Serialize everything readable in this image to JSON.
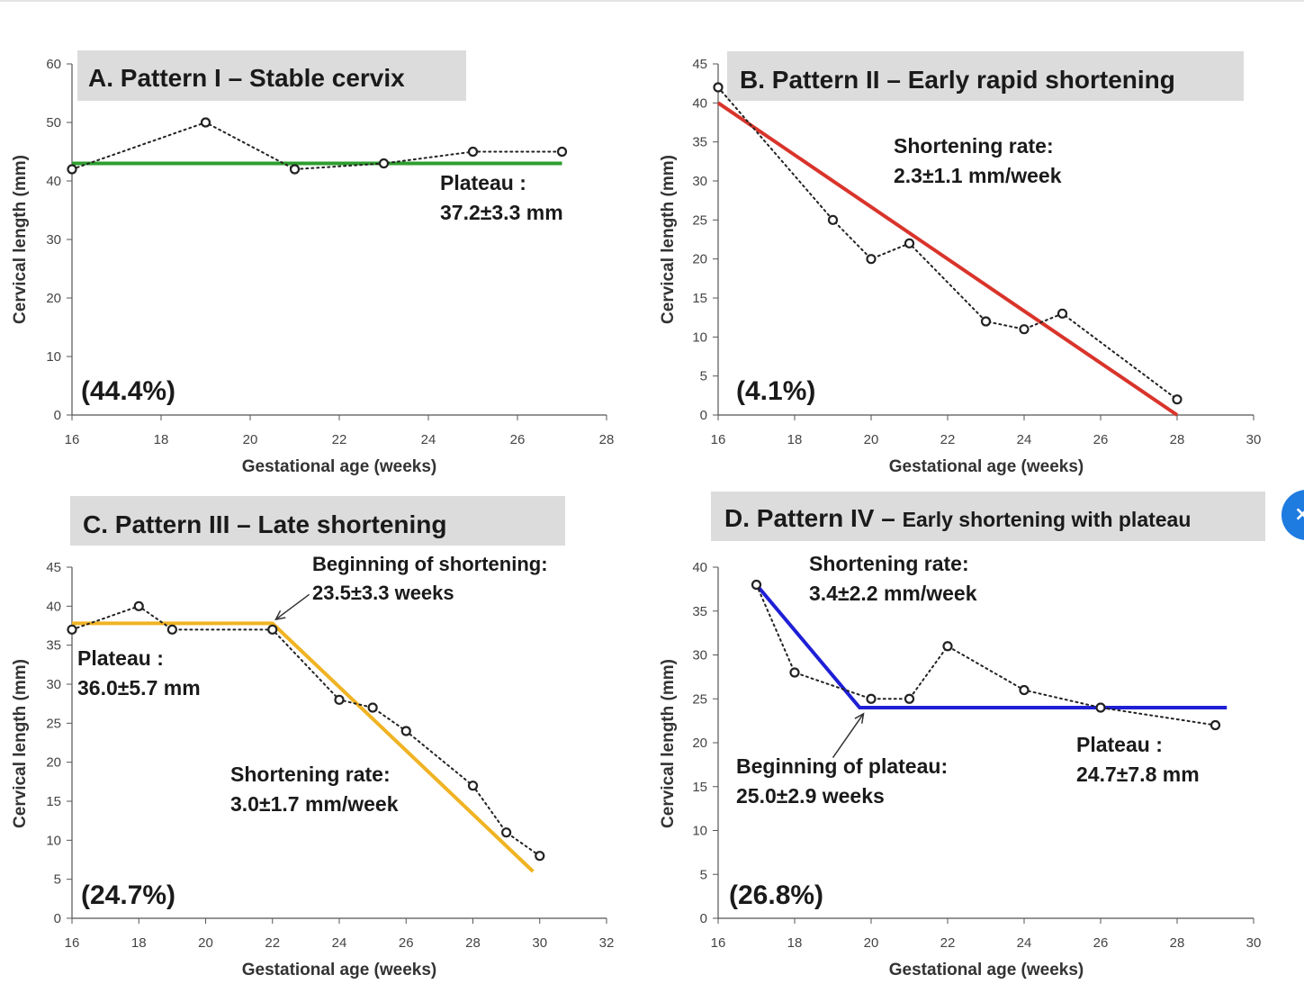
{
  "chart_data": [
    {
      "type": "line",
      "title": "A.  Pattern I – Stable cervix",
      "xlabel": "Gestational age (weeks)",
      "ylabel": "Cervical length (mm)",
      "xlim": [
        16,
        28
      ],
      "ylim": [
        0,
        60
      ],
      "xticks": [
        16,
        18,
        20,
        22,
        24,
        26,
        28
      ],
      "yticks": [
        0,
        10,
        20,
        30,
        40,
        50,
        60
      ],
      "series": [
        {
          "kind": "observed",
          "x": [
            16,
            19,
            21,
            23,
            25,
            27
          ],
          "y": [
            42,
            50,
            42,
            43,
            45,
            45
          ]
        },
        {
          "kind": "fit",
          "color": "#2e9e2e",
          "x": [
            16,
            27
          ],
          "y": [
            43,
            43
          ]
        }
      ],
      "annotations": [
        {
          "lines": [
            "Plateau :",
            "37.2±3.3 mm"
          ]
        }
      ],
      "percentage": "(44.4%)"
    },
    {
      "type": "line",
      "title": "B.  Pattern II – Early rapid shortening",
      "xlabel": "Gestational age (weeks)",
      "ylabel": "Cervical length (mm)",
      "xlim": [
        16,
        30
      ],
      "ylim": [
        0,
        45
      ],
      "xticks": [
        16,
        18,
        20,
        22,
        24,
        26,
        28,
        30
      ],
      "yticks": [
        0,
        5,
        10,
        15,
        20,
        25,
        30,
        35,
        40,
        45
      ],
      "series": [
        {
          "kind": "observed",
          "x": [
            16,
            19,
            20,
            21,
            23,
            24,
            25,
            28
          ],
          "y": [
            42,
            25,
            20,
            22,
            12,
            11,
            13,
            2
          ]
        },
        {
          "kind": "fit",
          "color": "#d9342b",
          "x": [
            16,
            28
          ],
          "y": [
            40,
            0
          ]
        }
      ],
      "annotations": [
        {
          "lines": [
            "Shortening rate:",
            "2.3±1.1 mm/week"
          ]
        }
      ],
      "percentage": "(4.1%)"
    },
    {
      "type": "line",
      "title": "C.  Pattern III – Late shortening",
      "xlabel": "Gestational age (weeks)",
      "ylabel": "Cervical length (mm)",
      "xlim": [
        16,
        32
      ],
      "ylim": [
        0,
        45
      ],
      "xticks": [
        16,
        18,
        20,
        22,
        24,
        26,
        28,
        30,
        32
      ],
      "yticks": [
        0,
        5,
        10,
        15,
        20,
        25,
        30,
        35,
        40,
        45
      ],
      "series": [
        {
          "kind": "observed",
          "x": [
            16,
            18,
            19,
            22,
            24,
            25,
            26,
            28,
            29,
            30
          ],
          "y": [
            37,
            40,
            37,
            37,
            28,
            27,
            24,
            17,
            11,
            8
          ]
        },
        {
          "kind": "fit",
          "color": "#f0b323",
          "x": [
            16,
            22,
            29.8
          ],
          "y": [
            37.8,
            37.8,
            6
          ]
        }
      ],
      "annotations": [
        {
          "lines": [
            "Beginning of shortening:",
            "23.5±3.3 weeks"
          ]
        },
        {
          "lines": [
            "Plateau :",
            "36.0±5.7 mm"
          ]
        },
        {
          "lines": [
            "Shortening rate:",
            "3.0±1.7 mm/week"
          ]
        }
      ],
      "arrow": {
        "from": [
          23.1,
          41.5
        ],
        "to": [
          22.1,
          38.3
        ]
      },
      "percentage": "(24.7%)"
    },
    {
      "type": "line",
      "title_parts": [
        "D.  Pattern IV – ",
        "Early shortening with plateau"
      ],
      "xlabel": "Gestational age (weeks)",
      "ylabel": "Cervical length (mm)",
      "xlim": [
        16,
        30
      ],
      "ylim": [
        0,
        40
      ],
      "xticks": [
        16,
        18,
        20,
        22,
        24,
        26,
        28,
        30
      ],
      "yticks": [
        0,
        5,
        10,
        15,
        20,
        25,
        30,
        35,
        40
      ],
      "series": [
        {
          "kind": "observed",
          "x": [
            17,
            18,
            20,
            21,
            22,
            24,
            26,
            29
          ],
          "y": [
            38,
            28,
            25,
            25,
            31,
            26,
            24,
            22
          ]
        },
        {
          "kind": "fit",
          "color": "#1f1fd6",
          "x": [
            17,
            19.7,
            29.3
          ],
          "y": [
            38,
            24,
            24
          ]
        }
      ],
      "annotations": [
        {
          "lines": [
            "Shortening rate:",
            "3.4±2.2 mm/week"
          ]
        },
        {
          "lines": [
            "Beginning of plateau:",
            "25.0±2.9 weeks"
          ]
        },
        {
          "lines": [
            "Plateau :",
            "24.7±7.8 mm"
          ]
        }
      ],
      "arrow": {
        "from": [
          19,
          18.3
        ],
        "to": [
          19.8,
          23.3
        ]
      },
      "percentage": "(26.8%)"
    }
  ],
  "fab": {
    "icon": "x-icon",
    "glyph": "×",
    "color": "#1e7be0"
  }
}
